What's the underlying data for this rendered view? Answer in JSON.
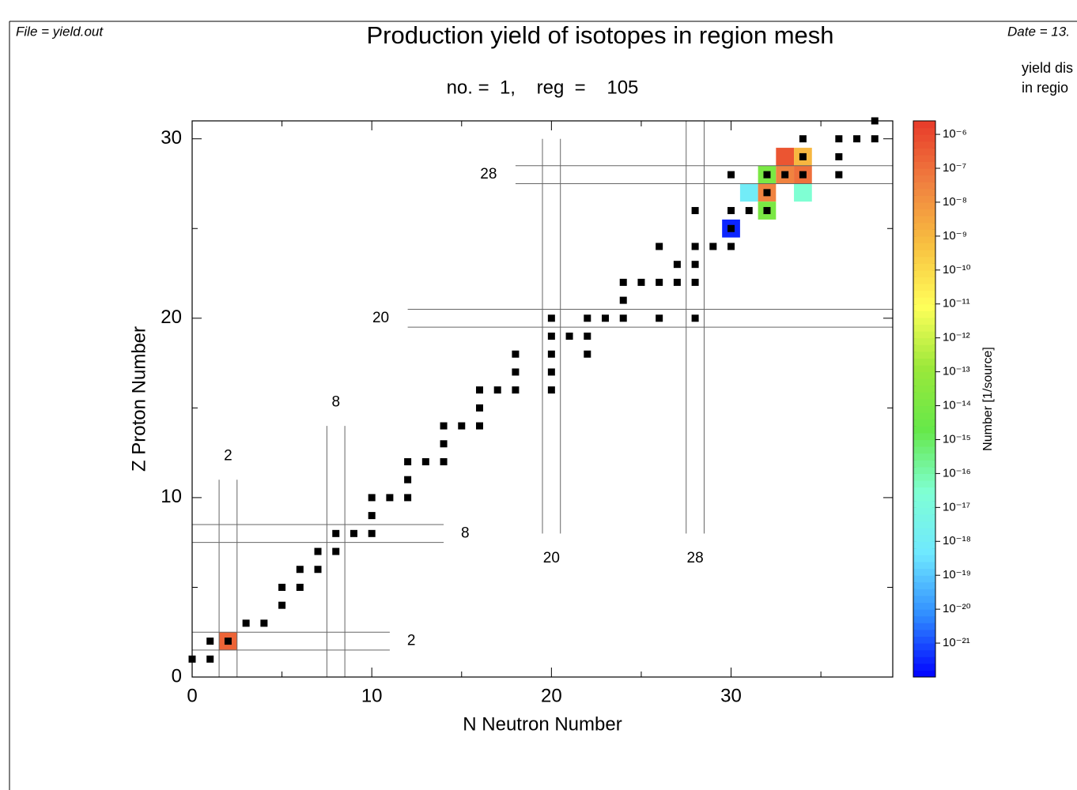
{
  "chart_data": {
    "type": "scatter",
    "file_label": "File = yield.out",
    "date_label": "Date = 13.",
    "side_note": [
      "yield dis",
      "in regio"
    ],
    "title": "Production yield of isotopes in region mesh",
    "subtitle": "no. =  1,    reg  =    105",
    "x_label": "N Neutron Number",
    "y_label": "Z Proton Number",
    "xlim": [
      0,
      39
    ],
    "ylim": [
      0,
      31
    ],
    "xticks": [
      0,
      10,
      20,
      30
    ],
    "yticks": [
      0,
      10,
      20,
      30
    ],
    "xminor_ticks": [
      5,
      15,
      25,
      35
    ],
    "yminor_ticks": [
      5,
      15,
      25
    ],
    "magic_numbers": [
      2,
      8,
      20,
      28
    ],
    "stable_isotopes": {
      "color": "#000000",
      "x": [
        0,
        1,
        1,
        2,
        3,
        4,
        5,
        5,
        6,
        6,
        7,
        7,
        8,
        8,
        9,
        10,
        10,
        10,
        11,
        12,
        12,
        12,
        13,
        14,
        14,
        14,
        15,
        16,
        16,
        16,
        17,
        18,
        20,
        18,
        20,
        18,
        20,
        22,
        20,
        21,
        22,
        20,
        22,
        23,
        24,
        26,
        28,
        24,
        24,
        25,
        26,
        27,
        28,
        27,
        28,
        26,
        28,
        29,
        30,
        30,
        28,
        30,
        31,
        32,
        32,
        30,
        32,
        33,
        34,
        36,
        34,
        36,
        34,
        36,
        37,
        38,
        38
      ],
      "y": [
        1,
        1,
        2,
        2,
        3,
        3,
        4,
        5,
        5,
        6,
        6,
        7,
        7,
        8,
        8,
        8,
        9,
        10,
        10,
        10,
        11,
        12,
        12,
        12,
        13,
        14,
        14,
        14,
        15,
        16,
        16,
        16,
        16,
        17,
        17,
        18,
        18,
        18,
        19,
        19,
        19,
        20,
        20,
        20,
        20,
        20,
        20,
        21,
        22,
        22,
        22,
        22,
        22,
        23,
        23,
        24,
        24,
        24,
        24,
        25,
        26,
        26,
        26,
        26,
        27,
        28,
        28,
        28,
        28,
        28,
        29,
        29,
        30,
        30,
        30,
        30,
        31
      ]
    },
    "yields": {
      "x": [
        2,
        30,
        31,
        32,
        32,
        32,
        33,
        33,
        34,
        34,
        34
      ],
      "y": [
        2,
        25,
        27,
        28,
        27,
        26,
        29,
        28,
        29,
        28,
        27
      ],
      "values": [
        2e-07,
        3e-22,
        1e-18,
        1e-14,
        3e-08,
        1e-14,
        5e-07,
        3e-08,
        1e-09,
        1e-07,
        3e-17
      ]
    },
    "colorbar": {
      "label": "Number [1/source]",
      "log": true,
      "lim": [
        1e-22,
        2.5e-06
      ],
      "colormap": [
        "#0000ff",
        "#2f8cff",
        "#6fe8ff",
        "#7fffd4",
        "#66e84a",
        "#9ae83a",
        "#ffff5a",
        "#f8c040",
        "#f08040",
        "#e83a2a"
      ],
      "ticks": [
        {
          "value": 1e-06,
          "label": "10⁻⁶"
        },
        {
          "value": 1e-07,
          "label": "10⁻⁷"
        },
        {
          "value": 1e-08,
          "label": "10⁻⁸"
        },
        {
          "value": 1e-09,
          "label": "10⁻⁹"
        },
        {
          "value": 1e-10,
          "label": "10⁻¹⁰"
        },
        {
          "value": 1e-11,
          "label": "10⁻¹¹"
        },
        {
          "value": 1e-12,
          "label": "10⁻¹²"
        },
        {
          "value": 1e-13,
          "label": "10⁻¹³"
        },
        {
          "value": 1e-14,
          "label": "10⁻¹⁴"
        },
        {
          "value": 1e-15,
          "label": "10⁻¹⁵"
        },
        {
          "value": 1e-16,
          "label": "10⁻¹⁶"
        },
        {
          "value": 1e-17,
          "label": "10⁻¹⁷"
        },
        {
          "value": 1e-18,
          "label": "10⁻¹⁸"
        },
        {
          "value": 1e-19,
          "label": "10⁻¹⁹"
        },
        {
          "value": 1e-20,
          "label": "10⁻²⁰"
        },
        {
          "value": 1e-21,
          "label": "10⁻²¹"
        }
      ]
    }
  }
}
